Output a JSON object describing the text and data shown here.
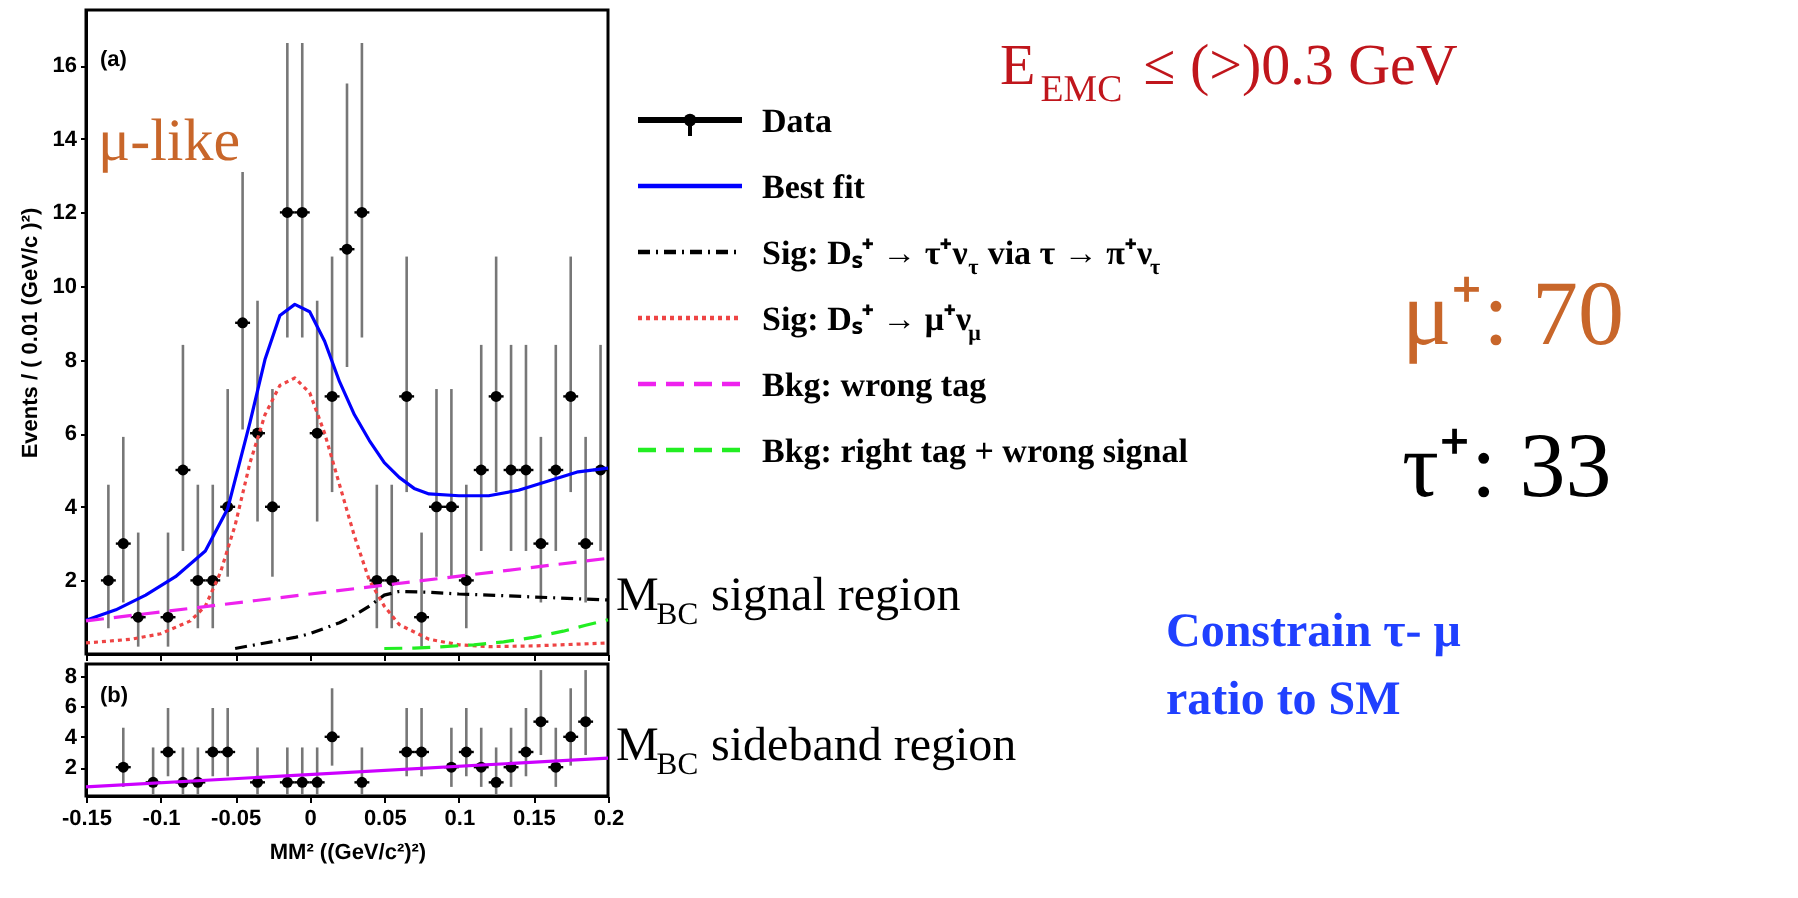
{
  "chart_data": [
    {
      "type": "line",
      "ylabel": "Events / ( 0.01 (GeV/c )²)",
      "xlim": [
        -0.15,
        0.2
      ],
      "ylim": [
        0,
        17.5
      ],
      "xticks": [
        -0.15,
        -0.1,
        -0.05,
        0,
        0.05,
        0.1,
        0.15,
        0.2
      ],
      "yticks": [
        2,
        4,
        6,
        8,
        10,
        12,
        14,
        16
      ],
      "tick_labels": "y",
      "legend": "right",
      "annotations": [
        "(a)",
        "μ-like",
        "E$_{EMC}$ ≤ (>)0.3 GeV",
        "μ⁺: 70",
        "τ⁺: 33",
        "M$_{BC}$ signal region",
        "M$_{BC}$ sideband region",
        "Constrain τ- μ ratio to SM"
      ],
      "series": [
        {
          "name": "Data",
          "type": "scatter",
          "marker": "circle",
          "color": "#000000",
          "x": [
            -0.135,
            -0.125,
            -0.115,
            -0.095,
            -0.085,
            -0.075,
            -0.065,
            -0.055,
            -0.045,
            -0.035,
            -0.025,
            -0.015,
            -0.005,
            0.005,
            0.015,
            0.025,
            0.035,
            0.045,
            0.055,
            0.065,
            0.075,
            0.085,
            0.095,
            0.105,
            0.115,
            0.125,
            0.135,
            0.145,
            0.155,
            0.165,
            0.175,
            0.185,
            0.195
          ],
          "values": [
            2,
            3,
            1,
            1,
            5,
            2,
            2,
            4,
            9,
            6,
            4,
            12,
            12,
            6,
            7,
            11,
            12,
            2,
            2,
            7,
            1,
            4,
            4,
            2,
            5,
            7,
            5,
            5,
            3,
            5,
            7,
            3,
            5
          ],
          "errors": [
            [
              0.7,
              4.6
            ],
            [
              1.4,
              5.9
            ],
            [
              0.2,
              3.3
            ],
            [
              0.2,
              3.3
            ],
            [
              2.8,
              8.4
            ],
            [
              0.7,
              4.6
            ],
            [
              0.7,
              4.6
            ],
            [
              2.1,
              7.2
            ],
            [
              6.1,
              13.1
            ],
            [
              3.6,
              9.6
            ],
            [
              2.1,
              7.2
            ],
            [
              8.6,
              16.6
            ],
            [
              8.6,
              16.6
            ],
            [
              3.6,
              9.6
            ],
            [
              4.4,
              10.8
            ],
            [
              7.8,
              15.5
            ],
            [
              8.6,
              16.6
            ],
            [
              0.7,
              4.6
            ],
            [
              0.7,
              4.6
            ],
            [
              4.4,
              10.8
            ],
            [
              0.2,
              3.3
            ],
            [
              2.1,
              7.2
            ],
            [
              2.1,
              7.2
            ],
            [
              0.7,
              4.6
            ],
            [
              2.8,
              8.4
            ],
            [
              4.4,
              10.8
            ],
            [
              2.8,
              8.4
            ],
            [
              2.8,
              8.4
            ],
            [
              1.4,
              5.9
            ],
            [
              2.8,
              8.4
            ],
            [
              4.4,
              10.8
            ],
            [
              1.4,
              5.9
            ],
            [
              2.8,
              8.4
            ]
          ],
          "xerrors": [
            0.005,
            0.005,
            0.005,
            0.005,
            0.005,
            0.005,
            0.005,
            0.005,
            0.005,
            0.005,
            0.005,
            0.005,
            0.005,
            0.005,
            0.005,
            0.005,
            0.005,
            0.005,
            0.005,
            0.005,
            0.005,
            0.005,
            0.005,
            0.005,
            0.005,
            0.005,
            0.005,
            0.005,
            0.005,
            0.005,
            0.005,
            0.005,
            0.005
          ]
        },
        {
          "name": "Best fit",
          "line_style": "solid",
          "color": "#0000ff",
          "x": [
            -0.15,
            -0.13,
            -0.11,
            -0.09,
            -0.07,
            -0.055,
            -0.04,
            -0.03,
            -0.02,
            -0.01,
            0,
            0.01,
            0.02,
            0.03,
            0.04,
            0.05,
            0.06,
            0.07,
            0.08,
            0.1,
            0.12,
            0.14,
            0.16,
            0.18,
            0.2
          ],
          "values": [
            0.92,
            1.2,
            1.6,
            2.1,
            2.8,
            3.95,
            6.3,
            8.0,
            9.2,
            9.5,
            9.3,
            8.5,
            7.4,
            6.5,
            5.8,
            5.2,
            4.8,
            4.5,
            4.35,
            4.3,
            4.3,
            4.45,
            4.7,
            4.95,
            5.05
          ]
        },
        {
          "name": "Sig: Dₛ⁺ → τ⁺ν$_{τ}$ via τ → π⁺ν$_{τ}$",
          "line_style": "dashdot",
          "color": "#000000",
          "x": [
            -0.05,
            -0.03,
            -0.01,
            0,
            0.01,
            0.02,
            0.03,
            0.04,
            0.05,
            0.06,
            0.08,
            0.1,
            0.12,
            0.15,
            0.18,
            0.2
          ],
          "values": [
            0.15,
            0.3,
            0.45,
            0.55,
            0.7,
            0.85,
            1.05,
            1.3,
            1.6,
            1.7,
            1.68,
            1.63,
            1.6,
            1.55,
            1.5,
            1.47
          ]
        },
        {
          "name": "Sig: Dₛ⁺ → μ⁺ν$_{μ}$",
          "line_style": "dotted",
          "color": "#ee4444",
          "x": [
            -0.15,
            -0.12,
            -0.1,
            -0.08,
            -0.07,
            -0.06,
            -0.05,
            -0.04,
            -0.03,
            -0.02,
            -0.01,
            0,
            0.01,
            0.02,
            0.03,
            0.04,
            0.05,
            0.06,
            0.08,
            0.1,
            0.12,
            0.15,
            0.2
          ],
          "values": [
            0.3,
            0.4,
            0.55,
            0.9,
            1.3,
            2.2,
            3.5,
            5.2,
            6.5,
            7.3,
            7.5,
            7.1,
            6.0,
            4.6,
            3.2,
            2.0,
            1.3,
            0.8,
            0.4,
            0.25,
            0.2,
            0.22,
            0.3
          ]
        },
        {
          "name": "Bkg: wrong tag",
          "line_style": "dashed",
          "color": "#ee22ee",
          "x": [
            -0.15,
            0.2
          ],
          "values": [
            0.9,
            2.6
          ]
        },
        {
          "name": "Bkg: right tag + wrong signal",
          "line_style": "dashed",
          "color": "#22ee22",
          "x": [
            0.05,
            0.07,
            0.09,
            0.11,
            0.13,
            0.15,
            0.17,
            0.185,
            0.2
          ],
          "values": [
            0.15,
            0.16,
            0.2,
            0.25,
            0.33,
            0.45,
            0.62,
            0.78,
            0.93
          ]
        }
      ]
    },
    {
      "type": "line",
      "xlabel": "MM² ((GeV/c²)²)",
      "xlim": [
        -0.15,
        0.2
      ],
      "ylim": [
        0.1,
        8.8
      ],
      "xticks": [
        -0.15,
        -0.1,
        -0.05,
        0,
        0.05,
        0.1,
        0.15,
        0.2
      ],
      "yticks": [
        2,
        4,
        6,
        8
      ],
      "annotations": [
        "(b)"
      ],
      "series": [
        {
          "type": "scatter",
          "marker": "circle",
          "color": "#000000",
          "x": [
            -0.125,
            -0.105,
            -0.095,
            -0.085,
            -0.075,
            -0.065,
            -0.055,
            -0.035,
            -0.015,
            -0.005,
            0.005,
            0.015,
            0.035,
            0.065,
            0.075,
            0.095,
            0.105,
            0.115,
            0.125,
            0.135,
            0.145,
            0.155,
            0.165,
            0.175,
            0.185
          ],
          "values": [
            2,
            1,
            3,
            1,
            1,
            3,
            3,
            1,
            1,
            1,
            1,
            4,
            1,
            3,
            3,
            2,
            3,
            2,
            1,
            2,
            3,
            5,
            2,
            4,
            5
          ],
          "errors": [
            [
              0.7,
              4.6
            ],
            [
              0.2,
              3.3
            ],
            [
              1.4,
              5.9
            ],
            [
              0.2,
              3.3
            ],
            [
              0.2,
              3.3
            ],
            [
              1.4,
              5.9
            ],
            [
              1.4,
              5.9
            ],
            [
              0.2,
              3.3
            ],
            [
              0.2,
              3.3
            ],
            [
              0.2,
              3.3
            ],
            [
              0.2,
              3.3
            ],
            [
              2.1,
              7.2
            ],
            [
              0.2,
              3.3
            ],
            [
              1.4,
              5.9
            ],
            [
              1.4,
              5.9
            ],
            [
              0.7,
              4.6
            ],
            [
              1.4,
              5.9
            ],
            [
              0.7,
              4.6
            ],
            [
              0.2,
              3.3
            ],
            [
              0.7,
              4.6
            ],
            [
              1.4,
              5.9
            ],
            [
              2.8,
              8.4
            ],
            [
              0.7,
              4.6
            ],
            [
              2.1,
              7.2
            ],
            [
              2.8,
              8.4
            ]
          ],
          "xerrors": [
            0.005,
            0.005,
            0.005,
            0.005,
            0.005,
            0.005,
            0.005,
            0.005,
            0.005,
            0.005,
            0.005,
            0.005,
            0.005,
            0.005,
            0.005,
            0.005,
            0.005,
            0.005,
            0.005,
            0.005,
            0.005,
            0.005,
            0.005,
            0.005,
            0.005
          ]
        },
        {
          "line_style": "solid",
          "color": "#cc00ff",
          "x": [
            -0.15,
            0.2
          ],
          "values": [
            0.7,
            2.6
          ]
        }
      ]
    }
  ]
}
